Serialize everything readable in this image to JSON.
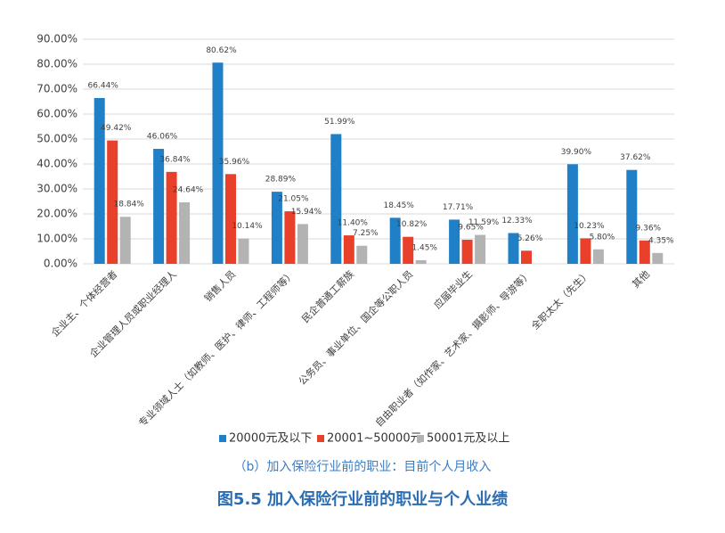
{
  "chart_data": {
    "type": "bar",
    "title": "图5.5 加入保险行业前的职业与个人业绩",
    "subtitle": "（b）加入保险行业前的职业：目前个人月收入",
    "categories": [
      "企业主、个体经营者",
      "企业管理人员或职业经理人",
      "销售人员",
      "专业领域人士（如教师、医护、律师、工程师等）",
      "民企普通工薪族",
      "公务员、事业单位、国企等公职人员",
      "应届毕业生",
      "自由职业者（如作家、艺术家、摄影师、导游等）",
      "全职太太（先生）",
      "其他"
    ],
    "series": [
      {
        "name": "20000元及以下",
        "color": "#1f7fc7",
        "values": [
          66.44,
          46.06,
          80.62,
          28.89,
          51.99,
          18.45,
          17.71,
          12.33,
          39.9,
          37.62
        ],
        "value_labels": [
          "66.44%",
          "46.06%",
          "80.62%",
          "28.89%",
          "51.99%",
          "18.45%",
          "17.71%",
          "12.33%",
          "39.90%",
          "37.62%"
        ]
      },
      {
        "name": "20001~50000元",
        "color": "#e8402a",
        "values": [
          49.42,
          36.84,
          35.96,
          21.05,
          11.4,
          10.82,
          9.65,
          5.26,
          10.23,
          9.36
        ],
        "value_labels": [
          "49.42%",
          "36.84%",
          "35.96%",
          "21.05%",
          "11.40%",
          "10.82%",
          "9.65%",
          "5.26%",
          "10.23%",
          "9.36%"
        ]
      },
      {
        "name": "50001元及以上",
        "color": "#b3b3b3",
        "values": [
          18.84,
          24.64,
          10.14,
          15.94,
          7.25,
          1.45,
          11.59,
          null,
          5.8,
          4.35
        ],
        "value_labels": [
          "18.84%",
          "24.64%",
          "10.14%",
          "15.94%",
          "7.25%",
          "1.45%",
          "11.59%",
          null,
          "5.80%",
          "4.35%"
        ]
      }
    ],
    "ylim": [
      0,
      90
    ],
    "yticks": [
      {
        "value": 0,
        "label": "0.00%"
      },
      {
        "value": 10,
        "label": "10.00%"
      },
      {
        "value": 20,
        "label": "20.00%"
      },
      {
        "value": 30,
        "label": "30.00%"
      },
      {
        "value": 40,
        "label": "40.00%"
      },
      {
        "value": 50,
        "label": "50.00%"
      },
      {
        "value": 60,
        "label": "60.00%"
      },
      {
        "value": 70,
        "label": "70.00%"
      },
      {
        "value": 80,
        "label": "80.00%"
      },
      {
        "value": 90,
        "label": "90.00%"
      }
    ],
    "grid": true,
    "legend": "bottom"
  }
}
